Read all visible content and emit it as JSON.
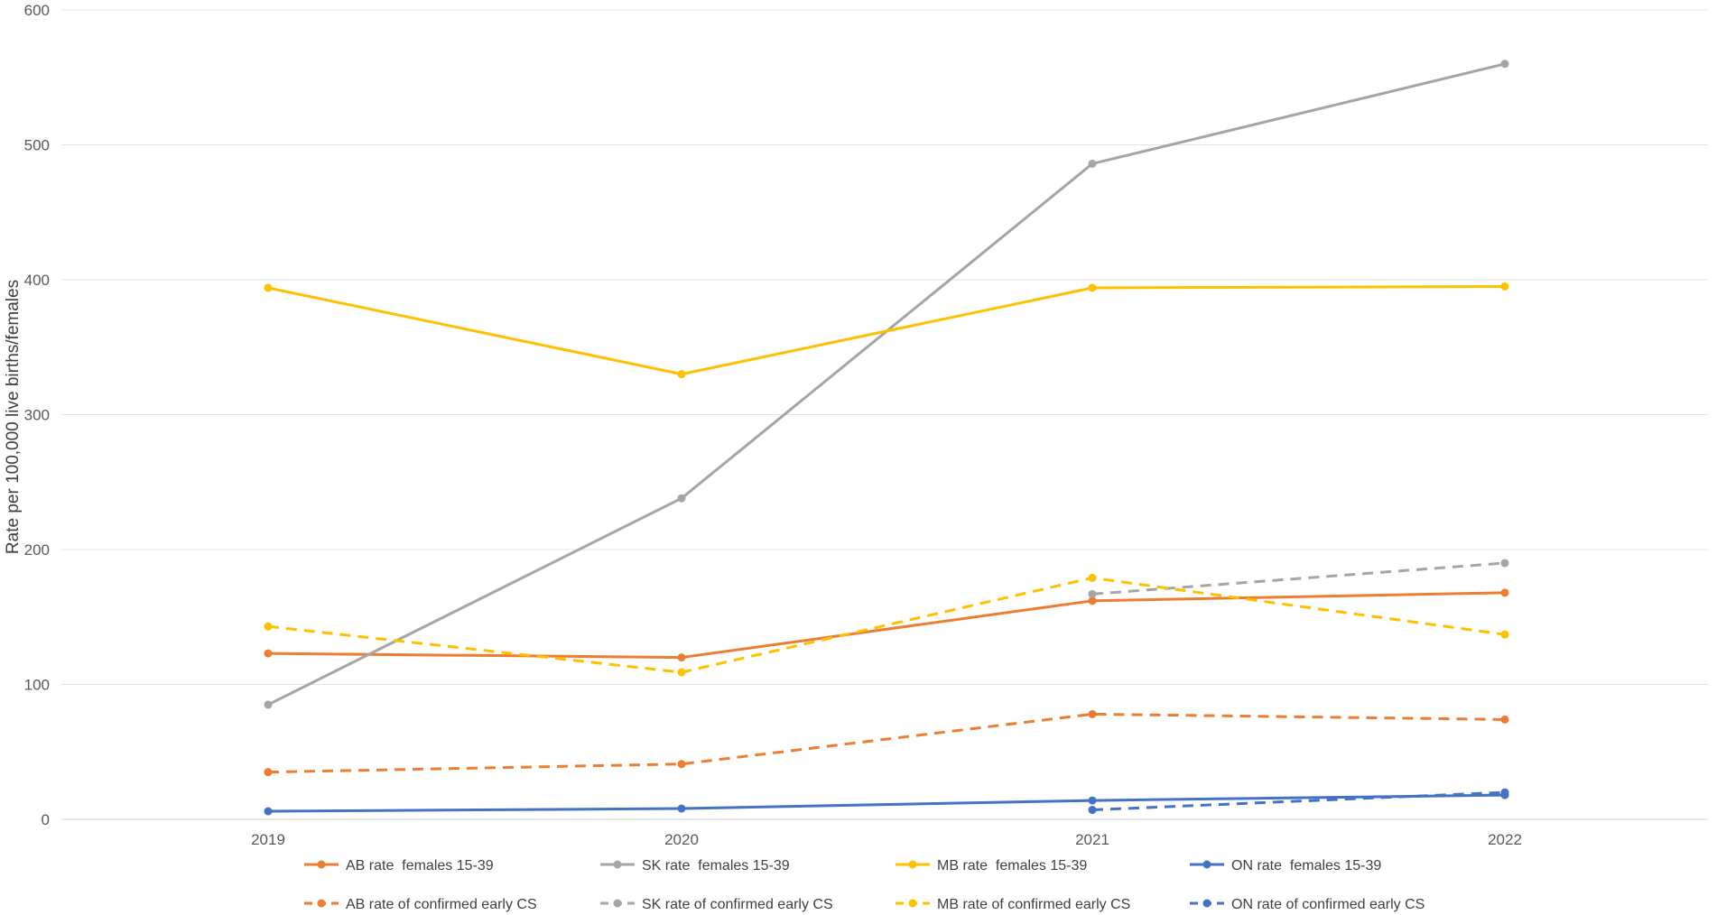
{
  "chart_data": {
    "type": "line",
    "title": "",
    "xlabel": "",
    "ylabel": "Rate per 100,000 live births/females",
    "x": [
      "2019",
      "2020",
      "2021",
      "2022"
    ],
    "ylim": [
      0,
      600
    ],
    "yticks": [
      "0",
      "100",
      "200",
      "300",
      "400",
      "500",
      "600"
    ],
    "grid": true,
    "legend_position": "bottom",
    "series": [
      {
        "name": "AB rate  females 15-39",
        "values": [
          123,
          120,
          162,
          168
        ],
        "color": "#ED7D31",
        "dashed": false
      },
      {
        "name": "SK rate  females 15-39",
        "values": [
          85,
          238,
          486,
          560
        ],
        "color": "#A5A5A5",
        "dashed": false
      },
      {
        "name": "MB rate  females 15-39",
        "values": [
          394,
          330,
          394,
          395
        ],
        "color": "#FFC000",
        "dashed": false
      },
      {
        "name": "ON rate  females 15-39",
        "values": [
          6,
          8,
          14,
          18
        ],
        "color": "#4472C4",
        "dashed": false
      },
      {
        "name": "AB rate of confirmed early CS",
        "values": [
          35,
          41,
          78,
          74
        ],
        "color": "#ED7D31",
        "dashed": true
      },
      {
        "name": "SK rate of confirmed early CS",
        "values": [
          null,
          null,
          167,
          190
        ],
        "color": "#A5A5A5",
        "dashed": true
      },
      {
        "name": "MB rate of confirmed early CS",
        "values": [
          143,
          109,
          179,
          137
        ],
        "color": "#FFC000",
        "dashed": true
      },
      {
        "name": "ON rate of confirmed early CS",
        "values": [
          null,
          null,
          7,
          20
        ],
        "color": "#4472C4",
        "dashed": true
      }
    ]
  }
}
